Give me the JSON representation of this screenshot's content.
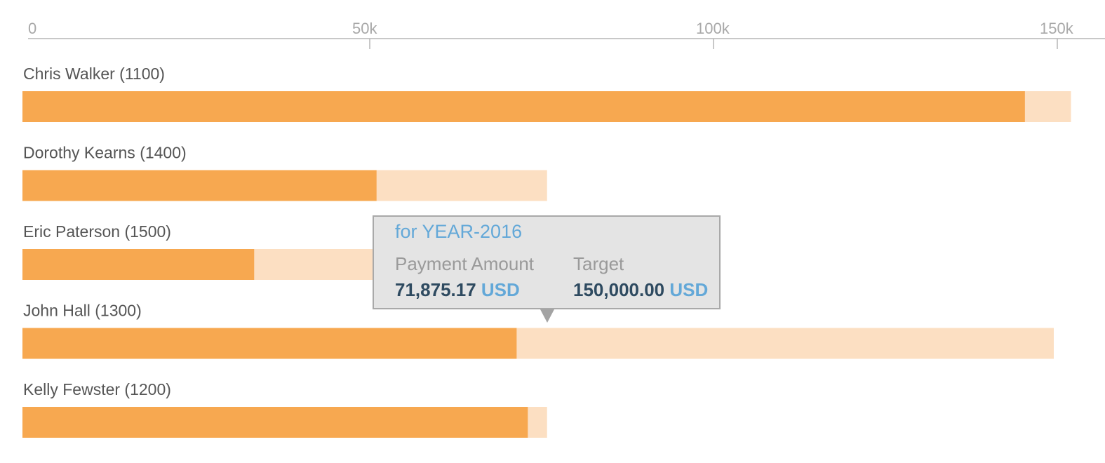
{
  "colors": {
    "actual": "#F7A850",
    "target": "#FCDFC2",
    "axis": "#b5b5b5",
    "tick_text": "#a8a8a8",
    "label_text": "#555555"
  },
  "chart_data": {
    "type": "bar",
    "orientation": "horizontal",
    "variant": "bullet",
    "xlim": [
      0,
      152000
    ],
    "x_ticks": [
      0,
      50000,
      100000,
      150000
    ],
    "x_tick_labels": [
      "0",
      "50k",
      "100k",
      "150k"
    ],
    "categories": [
      "Chris Walker (1100)",
      "Dorothy Kearns (1400)",
      "Eric Paterson (1500)",
      "John Hall (1300)",
      "Kelly Fewster (1200)"
    ],
    "series": [
      {
        "name": "Payment Amount",
        "values": [
          145800,
          51500,
          33700,
          71875.17,
          73500
        ]
      },
      {
        "name": "Target",
        "values": [
          152500,
          76300,
          76300,
          150000,
          76300
        ]
      }
    ]
  },
  "tooltip": {
    "title": "for YEAR-2016",
    "payment_label": "Payment Amount",
    "payment_value": "71,875.17",
    "payment_unit": "USD",
    "target_label": "Target",
    "target_value": "150,000.00",
    "target_unit": "USD"
  }
}
